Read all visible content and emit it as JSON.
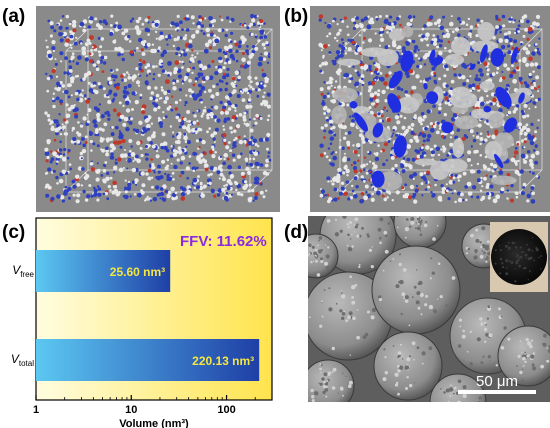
{
  "panels": {
    "a": {
      "label": "(a)"
    },
    "b": {
      "label": "(b)"
    },
    "c": {
      "label": "(c)"
    },
    "d": {
      "label": "(d)"
    }
  },
  "chart_data": {
    "type": "bar",
    "orientation": "horizontal",
    "xscale": "log",
    "xlim": [
      1,
      300
    ],
    "xticks": [
      "1",
      "10",
      "100"
    ],
    "xlabel": "Volume (nm³)",
    "categories": [
      "V_free",
      "V_total"
    ],
    "category_labels": [
      {
        "main": "V",
        "sub": "free"
      },
      {
        "main": "V",
        "sub": "total"
      }
    ],
    "values": [
      25.6,
      220.13
    ],
    "value_labels": [
      "25.60 nm³",
      "220.13 nm³"
    ],
    "annotation": "FFV: 11.62%",
    "annotation_color": "#8a2be2",
    "bar_gradient": [
      "#5cc8f2",
      "#1f3fa6"
    ],
    "background_gradient": [
      "#fffde0",
      "#ffe44d"
    ],
    "value_label_color": "#f5e642"
  },
  "sem": {
    "scale_bar": "50 μm"
  },
  "colors": {
    "molecule_bg": "#8a8a8a",
    "atom_white": "#e8e8e8",
    "atom_blue": "#2e3fbf",
    "atom_red": "#c0392b",
    "void_blue": "#1f2fe0"
  }
}
